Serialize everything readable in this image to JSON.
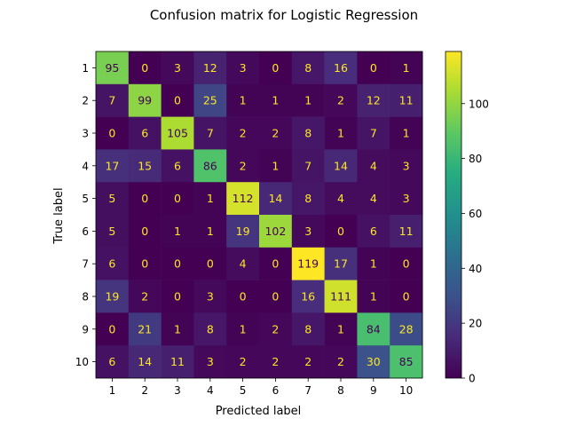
{
  "chart_data": {
    "type": "heatmap",
    "title": "Confusion matrix for Logistic Regression",
    "xlabel": "Predicted label",
    "ylabel": "True label",
    "x_categories": [
      "1",
      "2",
      "3",
      "4",
      "5",
      "6",
      "7",
      "8",
      "9",
      "10"
    ],
    "y_categories": [
      "1",
      "2",
      "3",
      "4",
      "5",
      "6",
      "7",
      "8",
      "9",
      "10"
    ],
    "values": [
      [
        95,
        0,
        3,
        12,
        3,
        0,
        8,
        16,
        0,
        1
      ],
      [
        7,
        99,
        0,
        25,
        1,
        1,
        1,
        2,
        12,
        11
      ],
      [
        0,
        6,
        105,
        7,
        2,
        2,
        8,
        1,
        7,
        1
      ],
      [
        17,
        15,
        6,
        86,
        2,
        1,
        7,
        14,
        4,
        3
      ],
      [
        5,
        0,
        0,
        1,
        112,
        14,
        8,
        4,
        4,
        3
      ],
      [
        5,
        0,
        1,
        1,
        19,
        102,
        3,
        0,
        6,
        11
      ],
      [
        6,
        0,
        0,
        0,
        4,
        0,
        119,
        17,
        1,
        0
      ],
      [
        19,
        2,
        0,
        3,
        0,
        0,
        16,
        111,
        1,
        0
      ],
      [
        0,
        21,
        1,
        8,
        1,
        2,
        8,
        1,
        84,
        28
      ],
      [
        6,
        14,
        11,
        3,
        2,
        2,
        2,
        2,
        30,
        85
      ]
    ],
    "colormap": "viridis",
    "colorbar": {
      "range": [
        0,
        119
      ],
      "ticks": [
        0,
        20,
        40,
        60,
        80,
        100
      ]
    },
    "grid": false
  }
}
